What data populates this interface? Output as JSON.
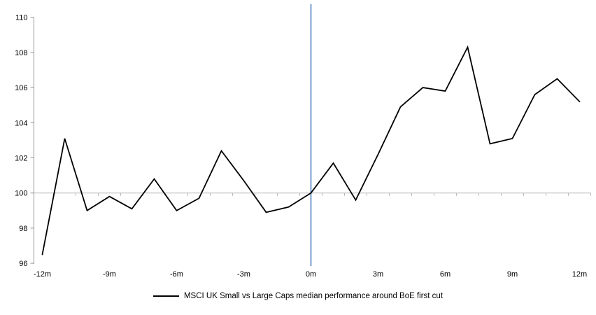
{
  "chart_data": {
    "type": "line",
    "title": "",
    "x": [
      -12,
      -11,
      -10,
      -9,
      -8,
      -7,
      -6,
      -5,
      -4,
      -3,
      -2,
      -1,
      0,
      1,
      2,
      3,
      4,
      5,
      6,
      7,
      8,
      9,
      10,
      11,
      12
    ],
    "series": [
      {
        "name": "MSCI UK Small vs Large Caps median performance around BoE first cut",
        "values": [
          96.5,
          103.1,
          99.0,
          99.8,
          99.1,
          100.8,
          99.0,
          99.7,
          102.4,
          100.7,
          98.9,
          99.2,
          100.0,
          101.7,
          99.6,
          102.2,
          104.9,
          106.0,
          105.8,
          108.3,
          102.8,
          103.1,
          105.6,
          106.5,
          105.2
        ]
      }
    ],
    "x_tick_labels": [
      "-12m",
      "-9m",
      "-6m",
      "-3m",
      "0m",
      "3m",
      "6m",
      "9m",
      "12m"
    ],
    "x_tick_positions": [
      -12,
      -9,
      -6,
      -3,
      0,
      3,
      6,
      9,
      12
    ],
    "y_ticks": [
      96,
      98,
      100,
      102,
      104,
      106,
      108,
      110
    ],
    "ylim": [
      96,
      110
    ],
    "xlim": [
      -12.5,
      12.5
    ],
    "baseline_value": 100,
    "event_line_x": 0,
    "legend_position": "bottom",
    "grid": "baseline-at-100-only",
    "colors": {
      "line": "#000000",
      "event_line": "#4f81bd",
      "axis": "#959595",
      "baseline": "#b8b8b8",
      "text": "#000000",
      "background": "#ffffff"
    }
  }
}
